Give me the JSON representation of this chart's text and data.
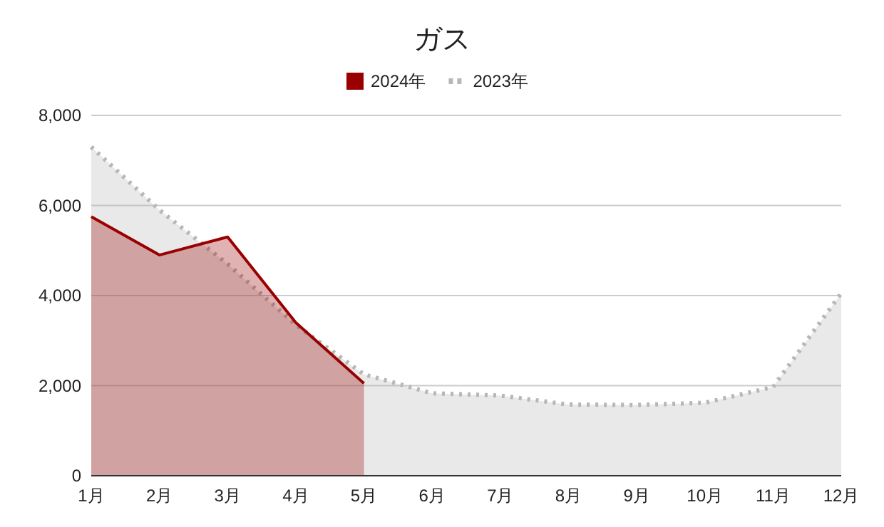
{
  "chart_data": {
    "type": "area",
    "title": "ガス",
    "categories": [
      "1月",
      "2月",
      "3月",
      "4月",
      "5月",
      "6月",
      "7月",
      "8月",
      "9月",
      "10月",
      "11月",
      "12月"
    ],
    "series": [
      {
        "name": "2024年",
        "color": "#990000",
        "line_style": "solid",
        "values": [
          5750,
          4900,
          5300,
          3400,
          2050,
          null,
          null,
          null,
          null,
          null,
          null,
          null
        ]
      },
      {
        "name": "2023年",
        "color": "#b7b7b7",
        "line_style": "dotted",
        "values": [
          7300,
          5900,
          4700,
          3350,
          2250,
          1830,
          1780,
          1580,
          1570,
          1620,
          1970,
          4050
        ]
      }
    ],
    "ylim": [
      0,
      8000
    ],
    "yticks": [
      {
        "value": 0,
        "label": "0"
      },
      {
        "value": 2000,
        "label": "2,000"
      },
      {
        "value": 4000,
        "label": "4,000"
      },
      {
        "value": 6000,
        "label": "6,000"
      },
      {
        "value": 8000,
        "label": "8,000"
      }
    ],
    "grid": "y",
    "legend": "top"
  }
}
